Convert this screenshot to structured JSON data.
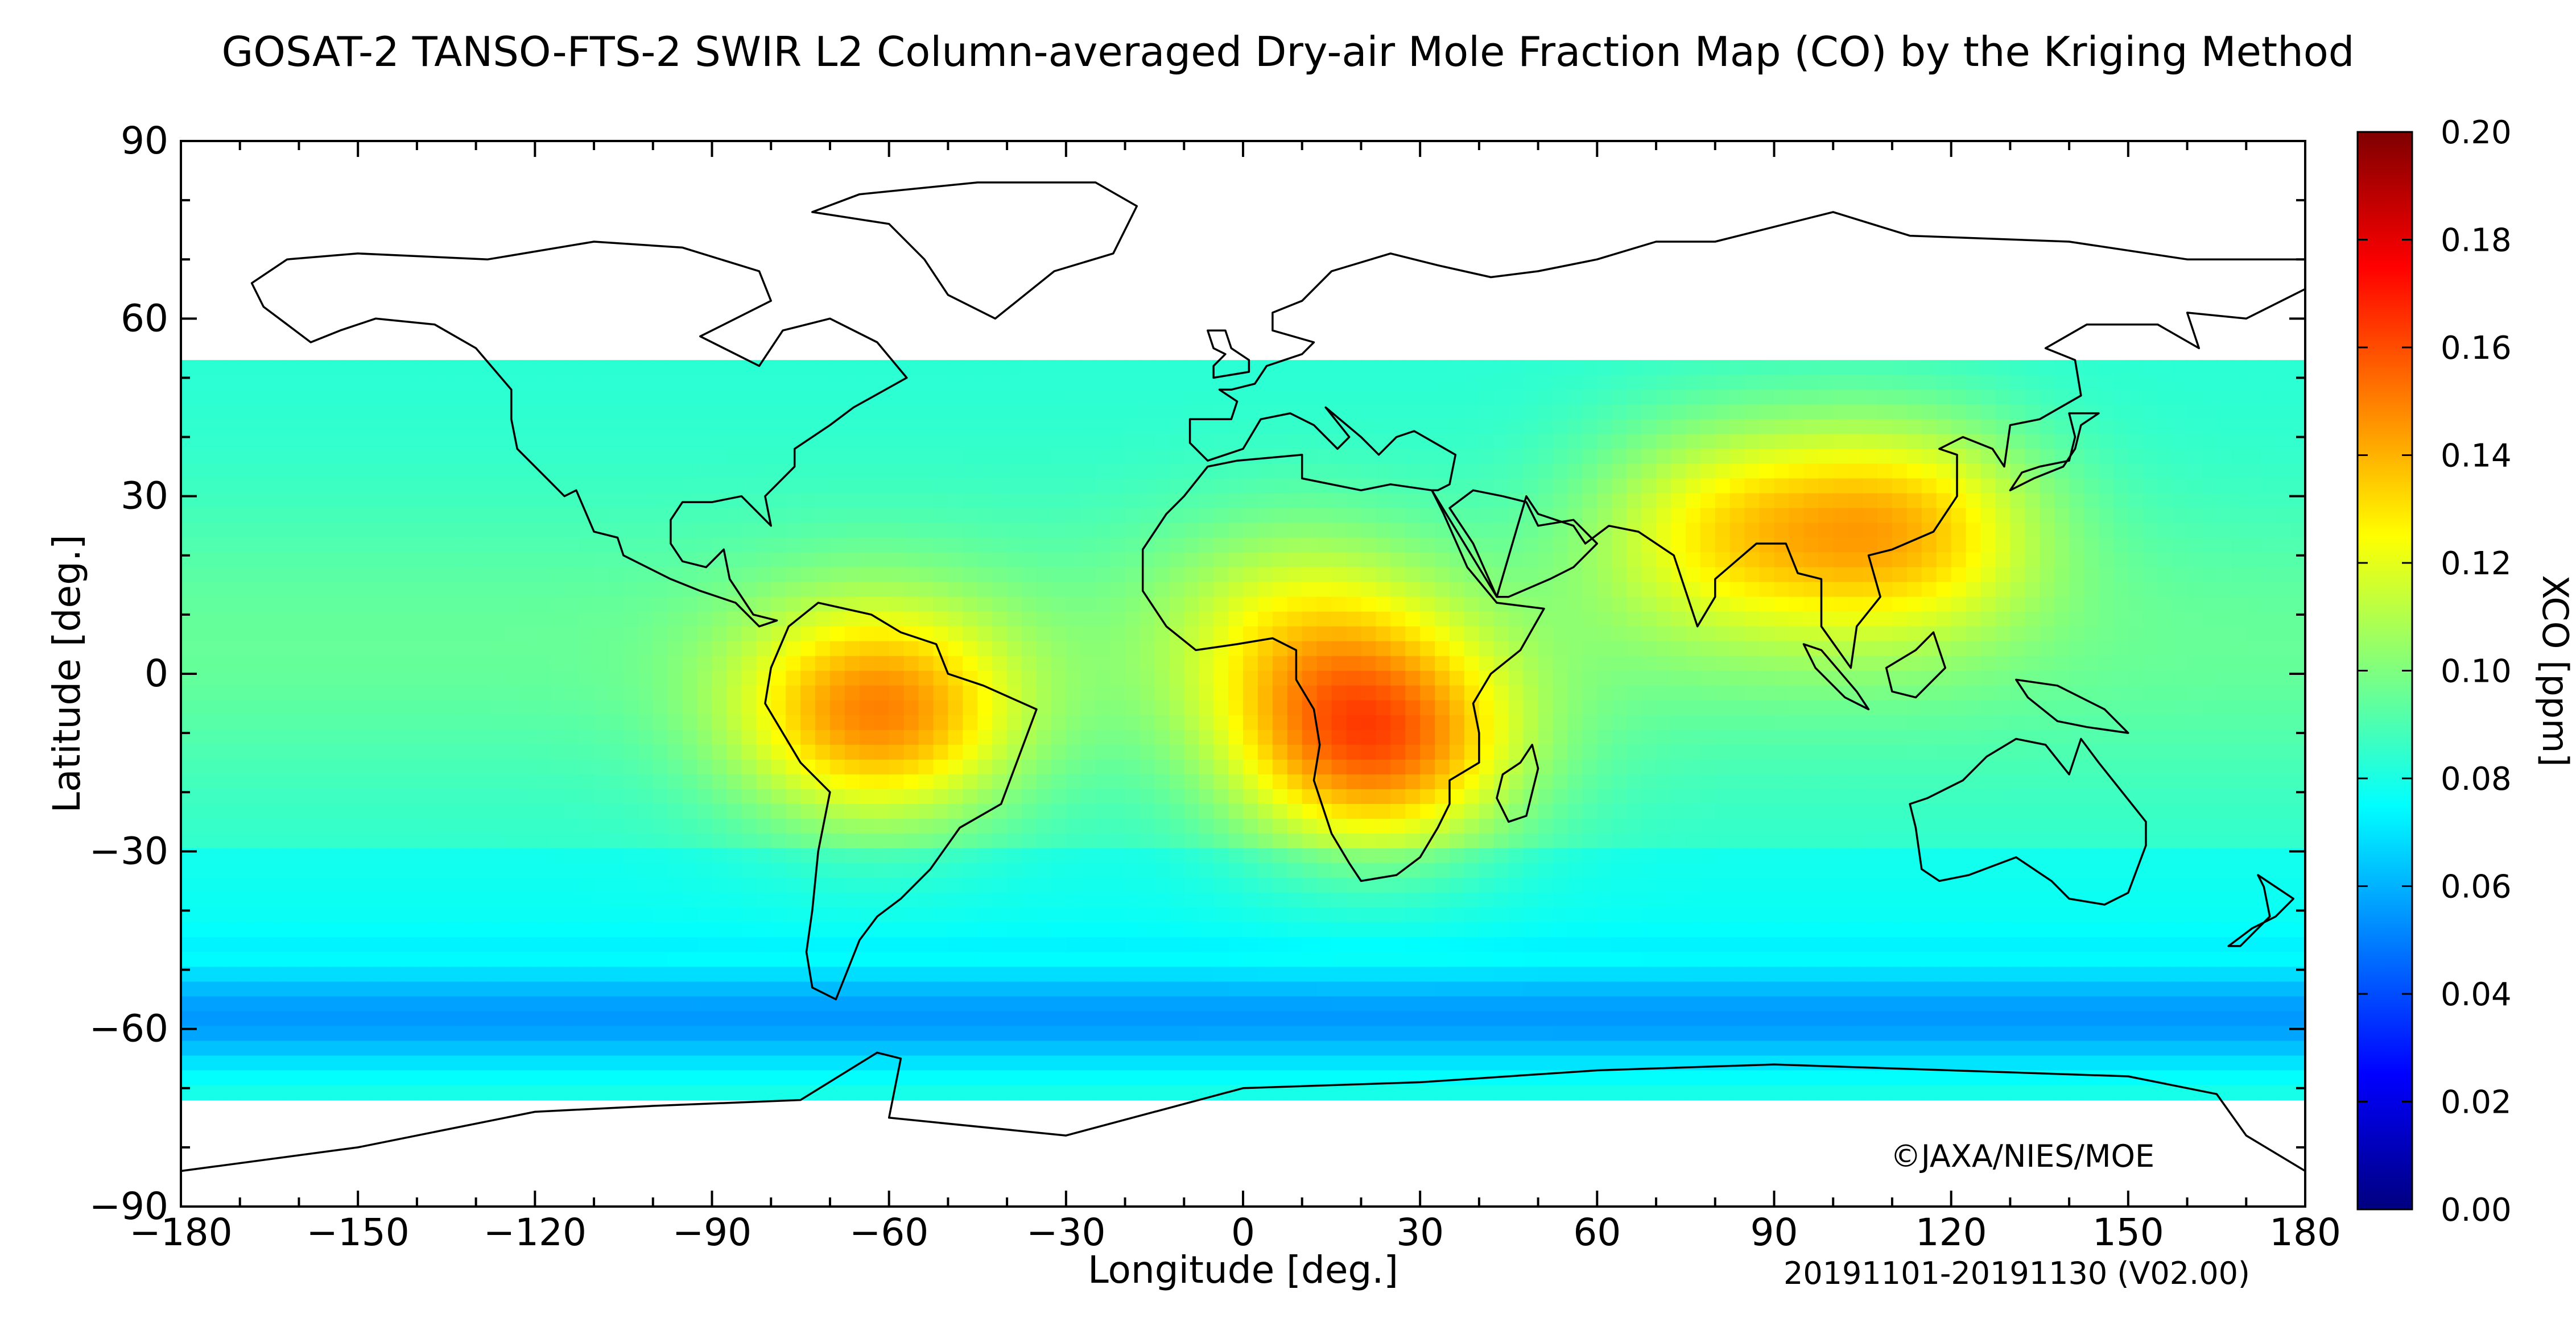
{
  "title": "GOSAT-2 TANSO-FTS-2 SWIR L2 Column-averaged Dry-air Mole Fraction Map (CO) by the Kriging Method",
  "map": {
    "xlabel": "Longitude [deg.]",
    "ylabel": "Latitude [deg.]",
    "xticks": [
      "−180",
      "−150",
      "−120",
      "−90",
      "−60",
      "−30",
      "0",
      "30",
      "60",
      "90",
      "120",
      "150",
      "180"
    ],
    "yticks": [
      "90",
      "60",
      "30",
      "0",
      "−30",
      "−60",
      "−90"
    ],
    "copyright": "©JAXA/NIES/MOE",
    "period": "20191101-20191130 (V02.00)"
  },
  "colorbar": {
    "label": "XCO [ppm]",
    "ticks": [
      "0.20",
      "0.18",
      "0.16",
      "0.14",
      "0.12",
      "0.10",
      "0.08",
      "0.06",
      "0.04",
      "0.02",
      "0.00"
    ],
    "colors": [
      "#00007f",
      "#0000ff",
      "#007fff",
      "#00ffff",
      "#7fff7f",
      "#ffff00",
      "#ff7f00",
      "#ff0000",
      "#7f0000"
    ]
  },
  "chart_data": {
    "type": "heatmap",
    "variable": "XCO [ppm]",
    "xlim": [
      -180,
      180
    ],
    "ylim": [
      -90,
      90
    ],
    "zlim": [
      0.0,
      0.2
    ],
    "coverage_lat": [
      -70,
      53
    ],
    "background_value": 0.083,
    "hotspots": [
      {
        "lon": 22,
        "lat": -12,
        "value": 0.148
      },
      {
        "lon": -62,
        "lat": -7,
        "value": 0.14
      },
      {
        "lon": 112,
        "lat": 25,
        "value": 0.128
      },
      {
        "lon": 82,
        "lat": 25,
        "value": 0.118
      },
      {
        "lon": 10,
        "lat": 8,
        "value": 0.108
      }
    ],
    "southern_band": {
      "lat": -58,
      "value": 0.055
    }
  }
}
